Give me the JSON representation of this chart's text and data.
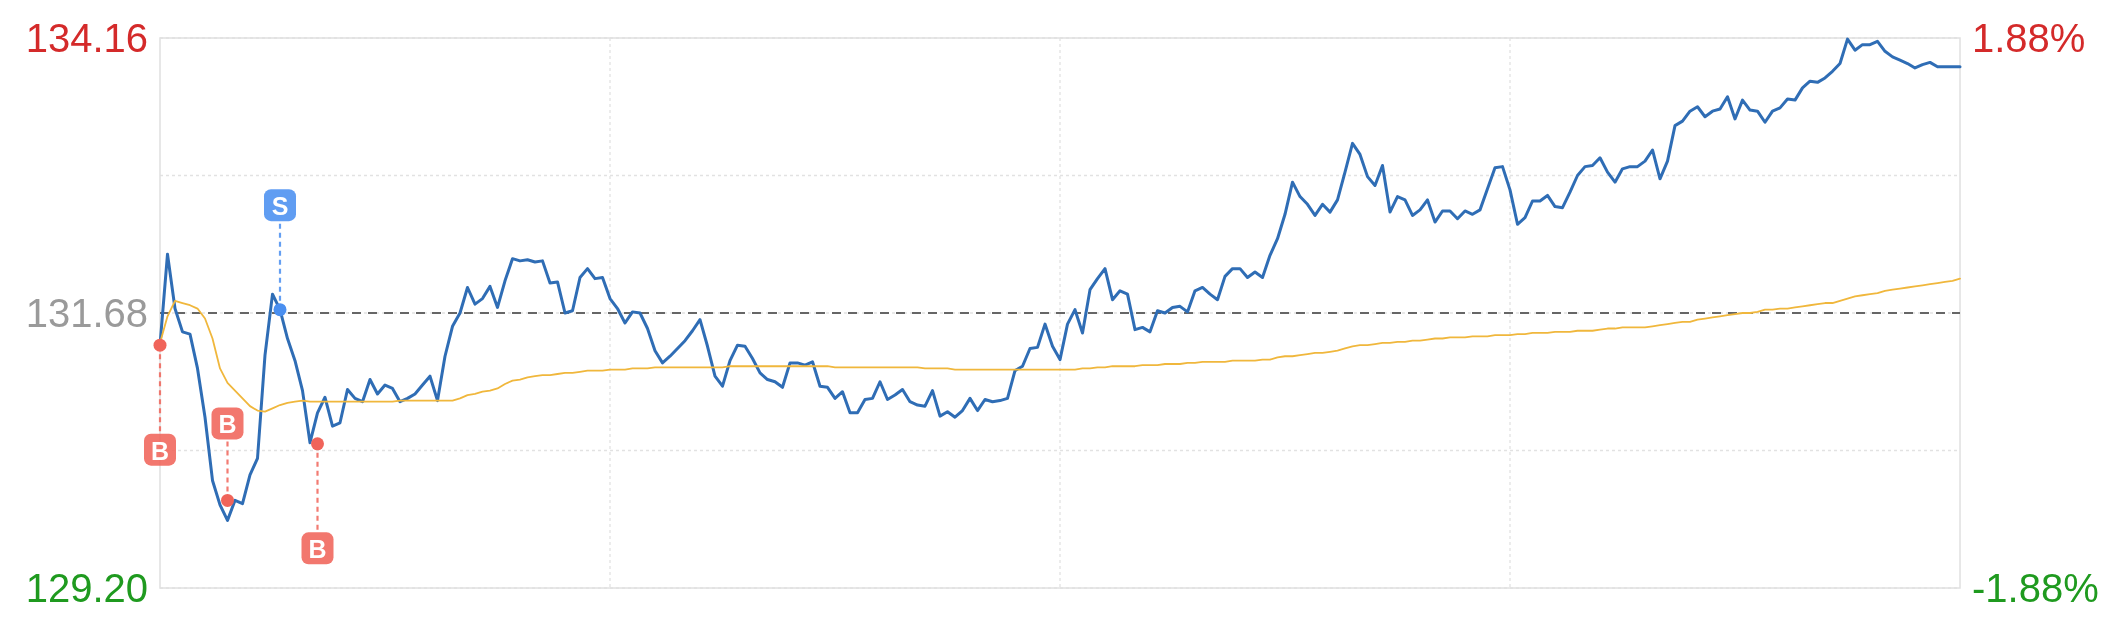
{
  "chart_data": {
    "type": "line",
    "categories": [
      null,
      null,
      null,
      null,
      null,
      null,
      null,
      null,
      null,
      null,
      null,
      null,
      null,
      null,
      null,
      null,
      null,
      null,
      null,
      null,
      null,
      null,
      null,
      null,
      null,
      null,
      null,
      null,
      null,
      null,
      null,
      null,
      null,
      null,
      null,
      null,
      null,
      null,
      null,
      null,
      null,
      null,
      null,
      null,
      null,
      null,
      null,
      null,
      null,
      null,
      null,
      null,
      null,
      null,
      null,
      null,
      null,
      null,
      null,
      null,
      null,
      null,
      null,
      null,
      null,
      null,
      null,
      null,
      null,
      null,
      null,
      null,
      null,
      null,
      null,
      null,
      null,
      null,
      null,
      null,
      null,
      null,
      null,
      null,
      null,
      null,
      null,
      null,
      null,
      null,
      null,
      null,
      null,
      null,
      null,
      null,
      null,
      null,
      null,
      null,
      null,
      null,
      null,
      null,
      null,
      null,
      null,
      null,
      null,
      null,
      null,
      null,
      null,
      null,
      null,
      null,
      null,
      null,
      null,
      null,
      null,
      null,
      null,
      null,
      null,
      null,
      null,
      null,
      null,
      null,
      null,
      null,
      null,
      null,
      null,
      null,
      null,
      null,
      null,
      null,
      null,
      null,
      null,
      null,
      null,
      null,
      null,
      null,
      null,
      null,
      null,
      null,
      null,
      null,
      null,
      null,
      null,
      null,
      null,
      null,
      null,
      null,
      null,
      null,
      null,
      null,
      null,
      null,
      null,
      null,
      null,
      null,
      null,
      null,
      null,
      null,
      null,
      null,
      null,
      null,
      null,
      null,
      null,
      null,
      null,
      null,
      null,
      null,
      null,
      null,
      null,
      null,
      null,
      null,
      null,
      null,
      null,
      null,
      null,
      null,
      null,
      null,
      null,
      null,
      null,
      null,
      null,
      null,
      null,
      null,
      null,
      null,
      null,
      null,
      null,
      null,
      null,
      null,
      null,
      null,
      null,
      null,
      null,
      null,
      null,
      null,
      null,
      null,
      null,
      null,
      null,
      null,
      null,
      null,
      null,
      null,
      null,
      null,
      null,
      null,
      null
    ],
    "series": [
      {
        "color": "#2f6db5",
        "values": [
          131.39,
          132.21,
          131.72,
          131.51,
          131.49,
          131.18,
          130.74,
          130.17,
          129.95,
          129.81,
          129.99,
          129.96,
          130.22,
          130.37,
          131.3,
          131.85,
          131.71,
          131.45,
          131.25,
          130.98,
          130.51,
          130.78,
          130.92,
          130.66,
          130.69,
          130.99,
          130.91,
          130.88,
          131.08,
          130.95,
          131.03,
          131.0,
          130.88,
          130.91,
          130.95,
          131.03,
          131.11,
          130.89,
          131.29,
          131.56,
          131.68,
          131.91,
          131.76,
          131.81,
          131.92,
          131.73,
          131.97,
          132.17,
          132.15,
          132.16,
          132.14,
          132.15,
          131.95,
          131.96,
          131.68,
          131.7,
          132.0,
          132.08,
          131.99,
          132.0,
          131.81,
          131.72,
          131.59,
          131.69,
          131.68,
          131.54,
          131.34,
          131.23,
          131.29,
          131.36,
          131.43,
          131.52,
          131.62,
          131.38,
          131.11,
          131.02,
          131.25,
          131.39,
          131.38,
          131.27,
          131.14,
          131.08,
          131.06,
          131.01,
          131.23,
          131.23,
          131.21,
          131.24,
          131.02,
          131.01,
          130.91,
          130.97,
          130.78,
          130.78,
          130.9,
          130.91,
          131.06,
          130.9,
          130.94,
          130.99,
          130.88,
          130.85,
          130.84,
          130.98,
          130.75,
          130.79,
          130.74,
          130.8,
          130.91,
          130.8,
          130.9,
          130.88,
          130.89,
          130.91,
          131.16,
          131.2,
          131.36,
          131.37,
          131.58,
          131.38,
          131.26,
          131.58,
          131.71,
          131.5,
          131.89,
          131.99,
          132.08,
          131.8,
          131.88,
          131.85,
          131.53,
          131.55,
          131.51,
          131.7,
          131.68,
          131.73,
          131.74,
          131.69,
          131.88,
          131.91,
          131.85,
          131.8,
          132.01,
          132.08,
          132.08,
          132.0,
          132.05,
          132.0,
          132.2,
          132.35,
          132.57,
          132.86,
          132.73,
          132.66,
          132.56,
          132.66,
          132.59,
          132.7,
          132.95,
          133.21,
          133.11,
          132.91,
          132.83,
          133.01,
          132.59,
          132.73,
          132.7,
          132.56,
          132.61,
          132.7,
          132.5,
          132.6,
          132.6,
          132.53,
          132.6,
          132.57,
          132.61,
          132.8,
          132.99,
          133.0,
          132.79,
          132.48,
          132.54,
          132.69,
          132.69,
          132.74,
          132.64,
          132.63,
          132.77,
          132.92,
          133.0,
          133.01,
          133.08,
          132.95,
          132.86,
          132.98,
          133.0,
          133.0,
          133.05,
          133.15,
          132.89,
          133.05,
          133.37,
          133.41,
          133.5,
          133.54,
          133.45,
          133.5,
          133.52,
          133.63,
          133.43,
          133.6,
          133.51,
          133.5,
          133.4,
          133.5,
          133.53,
          133.61,
          133.6,
          133.71,
          133.77,
          133.76,
          133.8,
          133.86,
          133.93,
          134.15,
          134.05,
          134.1,
          134.1,
          134.13,
          134.04,
          133.99,
          133.96,
          133.93,
          133.89,
          133.92,
          133.94,
          133.9,
          133.9,
          133.9,
          133.9
        ]
      },
      {
        "color": "#f0b73c",
        "values": [
          131.41,
          131.65,
          131.79,
          131.77,
          131.75,
          131.72,
          131.63,
          131.45,
          131.18,
          131.05,
          130.98,
          130.91,
          130.84,
          130.8,
          130.79,
          130.82,
          130.85,
          130.87,
          130.88,
          130.89,
          130.88,
          130.88,
          130.88,
          130.88,
          130.88,
          130.88,
          130.88,
          130.88,
          130.88,
          130.88,
          130.88,
          130.88,
          130.89,
          130.89,
          130.89,
          130.89,
          130.89,
          130.89,
          130.89,
          130.89,
          130.91,
          130.94,
          130.95,
          130.97,
          130.98,
          131.0,
          131.04,
          131.07,
          131.08,
          131.1,
          131.11,
          131.12,
          131.12,
          131.13,
          131.14,
          131.14,
          131.15,
          131.16,
          131.16,
          131.16,
          131.17,
          131.17,
          131.17,
          131.18,
          131.18,
          131.18,
          131.19,
          131.19,
          131.19,
          131.19,
          131.19,
          131.19,
          131.19,
          131.19,
          131.19,
          131.19,
          131.2,
          131.2,
          131.2,
          131.2,
          131.2,
          131.2,
          131.2,
          131.2,
          131.2,
          131.2,
          131.2,
          131.2,
          131.2,
          131.2,
          131.19,
          131.19,
          131.19,
          131.19,
          131.19,
          131.19,
          131.19,
          131.19,
          131.19,
          131.19,
          131.19,
          131.19,
          131.18,
          131.18,
          131.18,
          131.18,
          131.17,
          131.17,
          131.17,
          131.17,
          131.17,
          131.17,
          131.17,
          131.17,
          131.17,
          131.17,
          131.17,
          131.17,
          131.17,
          131.17,
          131.17,
          131.17,
          131.17,
          131.18,
          131.18,
          131.19,
          131.19,
          131.2,
          131.2,
          131.2,
          131.2,
          131.21,
          131.21,
          131.21,
          131.22,
          131.22,
          131.22,
          131.23,
          131.23,
          131.24,
          131.24,
          131.24,
          131.24,
          131.25,
          131.25,
          131.25,
          131.25,
          131.26,
          131.26,
          131.28,
          131.29,
          131.29,
          131.3,
          131.31,
          131.32,
          131.32,
          131.33,
          131.34,
          131.36,
          131.38,
          131.39,
          131.39,
          131.4,
          131.41,
          131.41,
          131.42,
          131.42,
          131.43,
          131.43,
          131.44,
          131.45,
          131.45,
          131.46,
          131.46,
          131.46,
          131.47,
          131.47,
          131.47,
          131.48,
          131.48,
          131.48,
          131.49,
          131.49,
          131.5,
          131.5,
          131.5,
          131.51,
          131.51,
          131.51,
          131.52,
          131.52,
          131.52,
          131.53,
          131.54,
          131.54,
          131.55,
          131.55,
          131.55,
          131.55,
          131.56,
          131.57,
          131.58,
          131.59,
          131.6,
          131.6,
          131.62,
          131.63,
          131.64,
          131.65,
          131.66,
          131.67,
          131.68,
          131.68,
          131.69,
          131.71,
          131.71,
          131.72,
          131.72,
          131.73,
          131.74,
          131.75,
          131.76,
          131.77,
          131.77,
          131.79,
          131.81,
          131.83,
          131.84,
          131.85,
          131.86,
          131.88,
          131.89,
          131.9,
          131.91,
          131.92,
          131.93,
          131.94,
          131.95,
          131.96,
          131.97,
          131.99
        ]
      },
      {
        "type": "scatter",
        "marker": "circle",
        "values": [
          131.39,
          null,
          null,
          null,
          null,
          null,
          null,
          null,
          null,
          129.99,
          null,
          null,
          null,
          null,
          null,
          null,
          131.71,
          null,
          null,
          null,
          null,
          130.5,
          null,
          null,
          null,
          null,
          null,
          null,
          null,
          null,
          null,
          null,
          null,
          null,
          null,
          null,
          null,
          null,
          null,
          null,
          null,
          null,
          null,
          null,
          null,
          null,
          null,
          null,
          null,
          null,
          null,
          null,
          null,
          null,
          null,
          null,
          null,
          null,
          null,
          null,
          null,
          null,
          null,
          null,
          null,
          null,
          null,
          null,
          null,
          null,
          null,
          null,
          null,
          null,
          null,
          null,
          null,
          null,
          null,
          null,
          null,
          null,
          null,
          null,
          null,
          null,
          null,
          null,
          null,
          null,
          null,
          null,
          null,
          null,
          null,
          null,
          null,
          null,
          null,
          null,
          null,
          null,
          null,
          null,
          null,
          null,
          null,
          null,
          null,
          null,
          null,
          null,
          null,
          null,
          null,
          null,
          null,
          null,
          null,
          null,
          null,
          null,
          null,
          null,
          null,
          null,
          null,
          null,
          null,
          null,
          null,
          null,
          null,
          null,
          null,
          null,
          null,
          null,
          null,
          null,
          null,
          null,
          null,
          null,
          null,
          null,
          null,
          null,
          null,
          null,
          null,
          null,
          null,
          null,
          null,
          null,
          null,
          null,
          null,
          null,
          null,
          null,
          null,
          null,
          null,
          null,
          null,
          null,
          null,
          null,
          null,
          null,
          null,
          null,
          null,
          null,
          null,
          null,
          null,
          null,
          null,
          null,
          null,
          null,
          null,
          null,
          null,
          null,
          null,
          null,
          null,
          null,
          null,
          null,
          null,
          null,
          null,
          null,
          null,
          null,
          null,
          null,
          null,
          null,
          null,
          null,
          null,
          null,
          null,
          null,
          null,
          null,
          null,
          null,
          null,
          null,
          null,
          null,
          null,
          null,
          null,
          null,
          null,
          null,
          null,
          null,
          null,
          null,
          null,
          null,
          null,
          null,
          null,
          null,
          null,
          null,
          null,
          null,
          null,
          null,
          null
        ],
        "value_labels": [
          "B",
          null,
          null,
          null,
          null,
          null,
          null,
          null,
          null,
          "B",
          null,
          null,
          null,
          null,
          null,
          null,
          "S",
          null,
          null,
          null,
          null,
          "B",
          null,
          null,
          null,
          null,
          null,
          null,
          null,
          null,
          null,
          null,
          null,
          null,
          null,
          null,
          null,
          null,
          null,
          null,
          null,
          null,
          null,
          null,
          null,
          null,
          null,
          null,
          null,
          null,
          null,
          null,
          null,
          null,
          null,
          null,
          null,
          null,
          null,
          null,
          null,
          null,
          null,
          null,
          null,
          null,
          null,
          null,
          null,
          null,
          null,
          null,
          null,
          null,
          null,
          null,
          null,
          null,
          null,
          null,
          null,
          null,
          null,
          null,
          null,
          null,
          null,
          null,
          null,
          null,
          null,
          null,
          null,
          null,
          null,
          null,
          null,
          null,
          null,
          null,
          null,
          null,
          null,
          null,
          null,
          null,
          null,
          null,
          null,
          null,
          null,
          null,
          null,
          null,
          null,
          null,
          null,
          null,
          null,
          null,
          null,
          null,
          null,
          null,
          null,
          null,
          null,
          null,
          null,
          null,
          null,
          null,
          null,
          null,
          null,
          null,
          null,
          null,
          null,
          null,
          null,
          null,
          null,
          null,
          null,
          null,
          null,
          null,
          null,
          null,
          null,
          null,
          null,
          null,
          null,
          null,
          null,
          null,
          null,
          null,
          null,
          null,
          null,
          null,
          null,
          null,
          null,
          null,
          null,
          null,
          null,
          null,
          null,
          null,
          null,
          null,
          null,
          null,
          null,
          null,
          null,
          null,
          null,
          null,
          null,
          null,
          null,
          null,
          null,
          null,
          null,
          null,
          null,
          null,
          null,
          null,
          null,
          null,
          null,
          null,
          null,
          null,
          null,
          null,
          null,
          null,
          null,
          null,
          null,
          null,
          null,
          null,
          null,
          null,
          null,
          null,
          null,
          null,
          null,
          null,
          null,
          null,
          null,
          null,
          null,
          null,
          null,
          null,
          null,
          null,
          null,
          null,
          null,
          null,
          null,
          null,
          null,
          null,
          null,
          null,
          null
        ],
        "colors": [
          "#f0645a",
          null,
          null,
          null,
          null,
          null,
          null,
          null,
          null,
          "#f0645a",
          null,
          null,
          null,
          null,
          null,
          null,
          "#4a8ff0",
          null,
          null,
          null,
          null,
          "#f0645a",
          null,
          null,
          null,
          null,
          null,
          null,
          null,
          null,
          null,
          null,
          null,
          null,
          null,
          null,
          null,
          null,
          null,
          null,
          null,
          null,
          null,
          null,
          null,
          null,
          null,
          null,
          null,
          null,
          null,
          null,
          null,
          null,
          null,
          null,
          null,
          null,
          null,
          null,
          null,
          null,
          null,
          null,
          null,
          null,
          null,
          null,
          null,
          null,
          null,
          null,
          null,
          null,
          null,
          null,
          null,
          null,
          null,
          null,
          null,
          null,
          null,
          null,
          null,
          null,
          null,
          null,
          null,
          null,
          null,
          null,
          null,
          null,
          null,
          null,
          null,
          null,
          null,
          null,
          null,
          null,
          null,
          null,
          null,
          null,
          null,
          null,
          null,
          null,
          null,
          null,
          null,
          null,
          null,
          null,
          null,
          null,
          null,
          null,
          null,
          null,
          null,
          null,
          null,
          null,
          null,
          null,
          null,
          null,
          null,
          null,
          null,
          null,
          null,
          null,
          null,
          null,
          null,
          null,
          null,
          null,
          null,
          null,
          null,
          null,
          null,
          null,
          null,
          null,
          null,
          null,
          null,
          null,
          null,
          null,
          null,
          null,
          null,
          null,
          null,
          null,
          null,
          null,
          null,
          null,
          null,
          null,
          null,
          null,
          null,
          null,
          null,
          null,
          null,
          null,
          null,
          null,
          null,
          null,
          null,
          null,
          null,
          null,
          null,
          null,
          null,
          null,
          null,
          null,
          null,
          null,
          null,
          null,
          null,
          null,
          null,
          null,
          null,
          null,
          null,
          null,
          null,
          null,
          null,
          null,
          null,
          null,
          null,
          null,
          null,
          null,
          null,
          null,
          null,
          null,
          null,
          null,
          null,
          null,
          null,
          null,
          null,
          null,
          null,
          null,
          null,
          null,
          null,
          null,
          null,
          null,
          null,
          null,
          null,
          null,
          null,
          null,
          null,
          null,
          null
        ]
      }
    ],
    "ylim": [
      129.2,
      134.16
    ],
    "yticks": [
      134.16,
      {
        "value": 132.92,
        "label": null
      },
      131.68,
      {
        "value": 130.44,
        "label": null
      },
      {
        "value": 129.2,
        "label": "129.20"
      }
    ],
    "y2lim": [
      -1.88,
      1.88
    ],
    "y2ticks": [
      {
        "value": 1.88,
        "label": "1.88%"
      },
      {
        "value": -1.88,
        "label": "-1.88%"
      }
    ],
    "ref_lines": [
      {
        "axis": "y",
        "value": 131.68,
        "color": "#666666",
        "line_style": "dashed"
      }
    ],
    "grid": true
  }
}
